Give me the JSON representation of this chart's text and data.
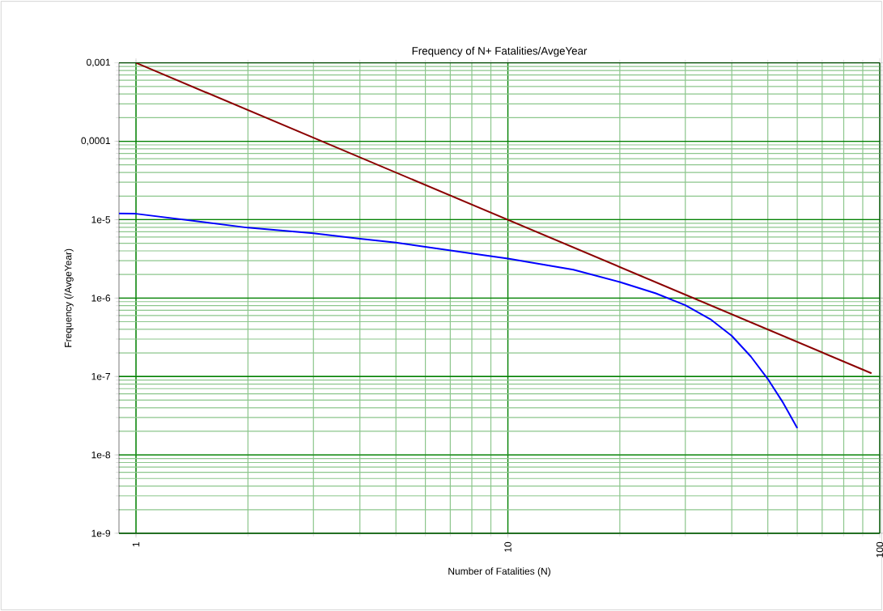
{
  "chart_data": {
    "type": "line",
    "title": "Frequency of N+ Fatalities/AvgeYear",
    "xlabel": "Number of Fatalities (N)",
    "ylabel": "Frequency (/AvgeYear)",
    "log": "xy",
    "grid": true,
    "xlim": [
      0.9,
      100
    ],
    "ylim": [
      1e-09,
      0.001
    ],
    "xticks": [
      1,
      10,
      100
    ],
    "yticks": [
      {
        "value": 1e-09,
        "label": "1e-9"
      },
      {
        "value": 1e-08,
        "label": "1e-8"
      },
      {
        "value": 1e-07,
        "label": "1e-7"
      },
      {
        "value": 1e-06,
        "label": "1e-6"
      },
      {
        "value": 1e-05,
        "label": "1e-5"
      },
      {
        "value": 0.0001,
        "label": "0,0001"
      },
      {
        "value": 0.001,
        "label": "0,001"
      }
    ],
    "series": [
      {
        "color": "#8b0000",
        "x": [
          1,
          95
        ],
        "values": [
          0.001,
          1.1e-07
        ]
      },
      {
        "color": "#0000ff",
        "x": [
          0.9,
          1,
          2,
          3,
          4,
          5,
          8,
          10,
          15,
          20,
          25,
          30,
          35,
          40,
          45,
          50,
          55,
          60
        ],
        "values": [
          1.2e-05,
          1.19e-05,
          7.9e-06,
          6.7e-06,
          5.7e-06,
          5.1e-06,
          3.7e-06,
          3.2e-06,
          2.3e-06,
          1.6e-06,
          1.15e-06,
          8.1e-07,
          5.4e-07,
          3.3e-07,
          1.8e-07,
          9.3e-08,
          4.6e-08,
          2.2e-08
        ]
      }
    ]
  }
}
